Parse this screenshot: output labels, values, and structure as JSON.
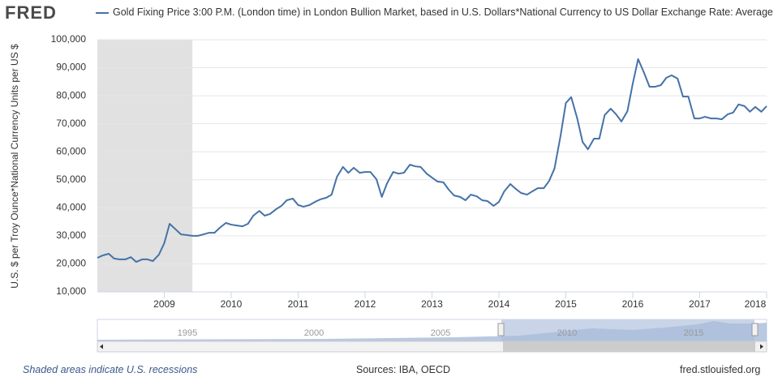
{
  "logo": "FRED",
  "footer": {
    "recession_note": "Shaded areas indicate U.S. recessions",
    "sources": "Sources: IBA, OECD",
    "site": "fred.stlouisfed.org"
  },
  "navigator": {
    "labels": [
      "1995",
      "2000",
      "2005",
      "2010",
      "2015"
    ]
  },
  "chart_data": {
    "type": "line",
    "y_label": "U.S. $ per Troy Ounce*National Currency Units per US $",
    "xlim": [
      2008,
      2018
    ],
    "xticks": [
      2009,
      2010,
      2011,
      2012,
      2013,
      2014,
      2015,
      2016,
      2017,
      2018
    ],
    "ylim": [
      10000,
      100000
    ],
    "yticks": [
      {
        "value": 10000,
        "label": "10,000"
      },
      {
        "value": 20000,
        "label": "20,000"
      },
      {
        "value": 30000,
        "label": "30,000"
      },
      {
        "value": 40000,
        "label": "40,000"
      },
      {
        "value": 50000,
        "label": "50,000"
      },
      {
        "value": 60000,
        "label": "60,000"
      },
      {
        "value": 70000,
        "label": "70,000"
      },
      {
        "value": 80000,
        "label": "80,000"
      },
      {
        "value": 90000,
        "label": "90,000"
      },
      {
        "value": 100000,
        "label": "100,000"
      }
    ],
    "grid": true,
    "recessions": [
      [
        2008,
        2009.42
      ]
    ],
    "recession_color": "#e1e1e1",
    "x": [
      2008,
      2008.08,
      2008.17,
      2008.25,
      2008.33,
      2008.42,
      2008.5,
      2008.58,
      2008.67,
      2008.75,
      2008.83,
      2008.92,
      2009,
      2009.08,
      2009.17,
      2009.25,
      2009.33,
      2009.42,
      2009.5,
      2009.58,
      2009.67,
      2009.75,
      2009.83,
      2009.92,
      2010,
      2010.08,
      2010.17,
      2010.25,
      2010.33,
      2010.42,
      2010.5,
      2010.58,
      2010.67,
      2010.75,
      2010.83,
      2010.92,
      2011,
      2011.08,
      2011.17,
      2011.25,
      2011.33,
      2011.42,
      2011.5,
      2011.58,
      2011.67,
      2011.75,
      2011.83,
      2011.92,
      2012,
      2012.08,
      2012.17,
      2012.25,
      2012.33,
      2012.42,
      2012.5,
      2012.58,
      2012.67,
      2012.75,
      2012.83,
      2012.92,
      2013,
      2013.08,
      2013.17,
      2013.25,
      2013.33,
      2013.42,
      2013.5,
      2013.58,
      2013.67,
      2013.75,
      2013.83,
      2013.92,
      2014,
      2014.08,
      2014.17,
      2014.25,
      2014.33,
      2014.42,
      2014.5,
      2014.58,
      2014.67,
      2014.75,
      2014.83,
      2014.92,
      2015,
      2015.08,
      2015.17,
      2015.25,
      2015.33,
      2015.42,
      2015.5,
      2015.58,
      2015.67,
      2015.75,
      2015.83,
      2015.92,
      2016,
      2016.08,
      2016.17,
      2016.25,
      2016.33,
      2016.42,
      2016.5,
      2016.58,
      2016.67,
      2016.75,
      2016.83,
      2016.92,
      2017,
      2017.08,
      2017.17,
      2017.25,
      2017.33,
      2017.42,
      2017.5,
      2017.58,
      2017.67,
      2017.75,
      2017.83,
      2017.92,
      2018
    ],
    "series": [
      {
        "name": "Gold Fixing Price 3:00 P.M. (London time) in London Bullion Market, based in U.S. Dollars*National Currency to US Dollar Exchange Rate: Average",
        "color": "#4572a7",
        "values": [
          22150,
          23000,
          23600,
          21900,
          21600,
          21600,
          22400,
          20700,
          21600,
          21600,
          21000,
          23300,
          27400,
          34300,
          32300,
          30500,
          30300,
          30000,
          30000,
          30500,
          31100,
          31100,
          32900,
          34600,
          34000,
          33700,
          33400,
          34300,
          37200,
          38900,
          37200,
          37800,
          39500,
          40700,
          42700,
          43300,
          41000,
          40400,
          41000,
          42100,
          43000,
          43600,
          44700,
          51100,
          54600,
          52500,
          54300,
          52500,
          52800,
          52800,
          50200,
          43900,
          48800,
          52800,
          52200,
          52500,
          55400,
          54800,
          54600,
          52200,
          50800,
          49400,
          49100,
          46500,
          44400,
          43900,
          42700,
          44700,
          44100,
          42700,
          42400,
          40700,
          42100,
          45900,
          48500,
          46800,
          45300,
          44700,
          45900,
          47000,
          47000,
          49600,
          54000,
          65600,
          77400,
          79500,
          71900,
          63500,
          60900,
          64700,
          64700,
          73100,
          75400,
          73400,
          70800,
          74500,
          84400,
          93100,
          88100,
          83200,
          83200,
          83800,
          86400,
          87300,
          86100,
          79700,
          79700,
          71900,
          71900,
          72500,
          71900,
          71900,
          71600,
          73400,
          74000,
          76900,
          76300,
          74300,
          76000,
          74300,
          76300
        ]
      }
    ]
  }
}
